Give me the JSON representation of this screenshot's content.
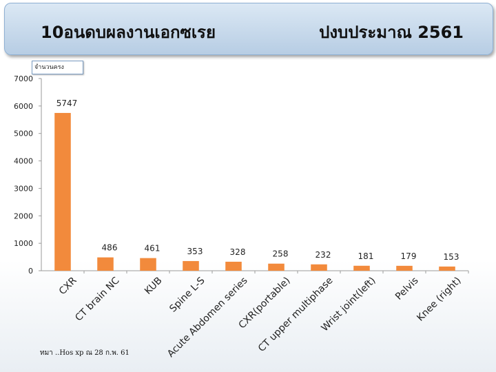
{
  "header": {
    "title": "10อนดบผลงานเอกซเรย",
    "year_label": "ปงบประมาณ  2561"
  },
  "ylabel_box": "จำนวนครง",
  "source": "ทมา    ..Hos xp ณ 28 ก.พ. 61",
  "colors": {
    "bar": "#f28a3c",
    "axis": "#9a9a9a"
  },
  "chart_data": {
    "type": "bar",
    "title": "10อนดบผลงานเอกซเรย",
    "ylabel": "จำนวนครง",
    "xlabel": "",
    "ylim": [
      0,
      7000
    ],
    "yticks": [
      0,
      1000,
      2000,
      3000,
      4000,
      5000,
      6000,
      7000
    ],
    "grid": false,
    "categories": [
      "CXR",
      "CT brain NC",
      "KUB",
      "Spine L-S",
      "Acute Abdomen series",
      "CXR(portable)",
      "CT upper multiphase",
      "Wrist joint(left)",
      "Pelvis",
      "Knee (right)"
    ],
    "values": [
      5747,
      486,
      461,
      353,
      328,
      258,
      232,
      181,
      179,
      153
    ],
    "data_labels": [
      "5747",
      "486",
      "461",
      "353",
      "328",
      "258",
      "232",
      "181",
      "179",
      "153"
    ]
  }
}
